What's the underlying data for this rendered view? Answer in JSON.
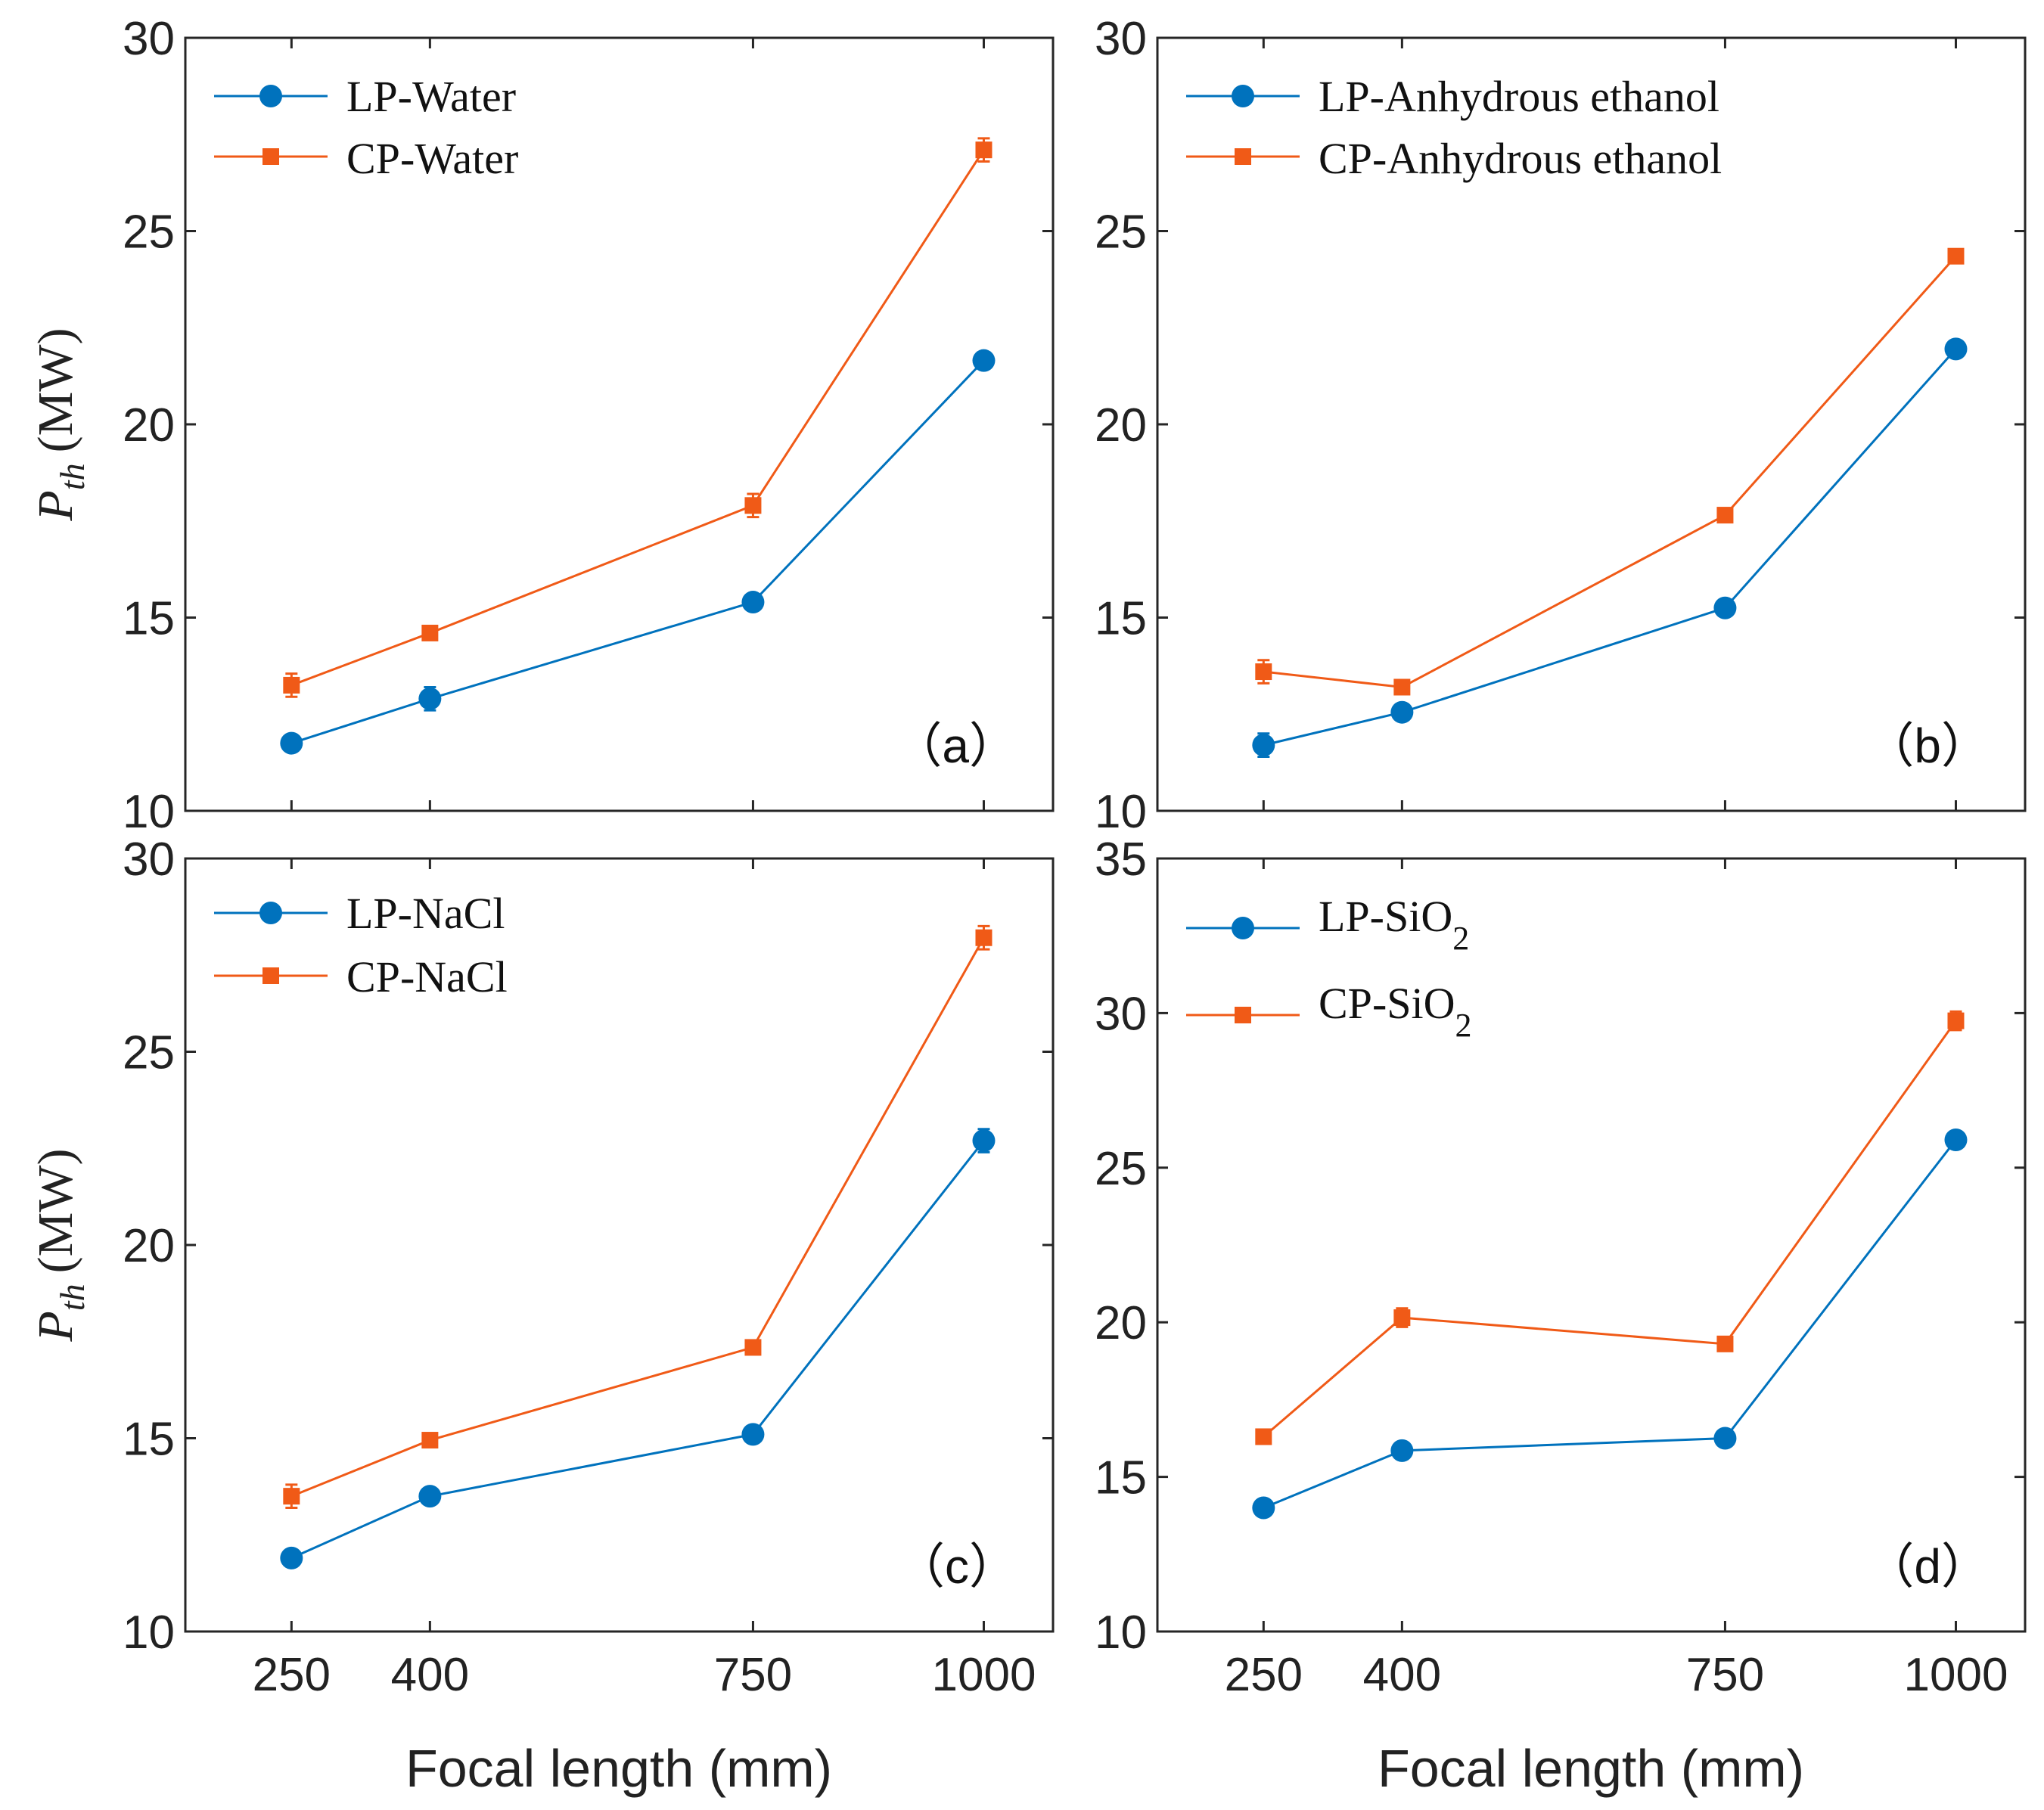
{
  "colors": {
    "LP": "#0072BD",
    "CP": "#F05A17",
    "axis": "#262626"
  },
  "chart_data": [
    {
      "type": "line",
      "panel": "(a)",
      "x": [
        250,
        400,
        750,
        1000
      ],
      "xlabel": "",
      "ylabel": "P_th (MW)",
      "ylim": [
        10,
        30
      ],
      "yticks": [
        10,
        15,
        20,
        25,
        30
      ],
      "series": [
        {
          "name": "LP-Water",
          "marker": "circle",
          "values": [
            11.75,
            12.9,
            15.4,
            21.65
          ],
          "errors": [
            0.15,
            0.3,
            0.2,
            0.2
          ]
        },
        {
          "name": "CP-Water",
          "marker": "square",
          "values": [
            13.25,
            14.6,
            17.9,
            27.1
          ],
          "errors": [
            0.3,
            0.15,
            0.3,
            0.3
          ]
        }
      ]
    },
    {
      "type": "line",
      "panel": "(b)",
      "x": [
        250,
        400,
        750,
        1000
      ],
      "xlabel": "",
      "ylabel": "",
      "ylim": [
        10,
        30
      ],
      "yticks": [
        10,
        15,
        20,
        25,
        30
      ],
      "series": [
        {
          "name": "LP-Anhydrous ethanol",
          "marker": "circle",
          "values": [
            11.7,
            12.55,
            15.25,
            21.95
          ],
          "errors": [
            0.3,
            0.15,
            0.2,
            0.15
          ]
        },
        {
          "name": "CP-Anhydrous ethanol",
          "marker": "square",
          "values": [
            13.6,
            13.2,
            17.65,
            24.35
          ],
          "errors": [
            0.3,
            0.15,
            0.15,
            0.15
          ]
        }
      ]
    },
    {
      "type": "line",
      "panel": "(c)",
      "x": [
        250,
        400,
        750,
        1000
      ],
      "xlabel": "Focal length (mm)",
      "ylabel": "P_th (MW)",
      "ylim": [
        10,
        30
      ],
      "yticks": [
        10,
        15,
        20,
        25,
        30
      ],
      "series": [
        {
          "name": "LP-NaCl",
          "marker": "circle",
          "values": [
            11.9,
            13.5,
            15.1,
            22.7
          ],
          "errors": [
            0.15,
            0.15,
            0.15,
            0.3
          ]
        },
        {
          "name": "CP-NaCl",
          "marker": "square",
          "values": [
            13.5,
            14.95,
            17.35,
            27.95
          ],
          "errors": [
            0.3,
            0.15,
            0.15,
            0.3
          ]
        }
      ]
    },
    {
      "type": "line",
      "panel": "(d)",
      "x": [
        250,
        400,
        750,
        1000
      ],
      "xlabel": "Focal length (mm)",
      "ylabel": "",
      "ylim": [
        10,
        35
      ],
      "yticks": [
        10,
        15,
        20,
        25,
        30,
        35
      ],
      "series": [
        {
          "name": "LP-SiO2",
          "marker": "circle",
          "values": [
            14.0,
            15.85,
            16.25,
            25.9
          ],
          "errors": [
            0.15,
            0.15,
            0.15,
            0.2
          ]
        },
        {
          "name": "CP-SiO2",
          "marker": "square",
          "values": [
            16.3,
            20.15,
            19.3,
            29.75
          ],
          "errors": [
            0.15,
            0.3,
            0.15,
            0.3
          ]
        }
      ]
    }
  ],
  "axis_text": {
    "xlabel": "Focal length (mm)",
    "ylabel_main": "P",
    "ylabel_sub": "th",
    "ylabel_unit": "(MW)",
    "legend_lp_sio2_main": "LP-SiO",
    "legend_cp_sio2_main": "CP-SiO",
    "legend_sio2_sub": "2",
    "panel_a": "（a）",
    "panel_b": "（b）",
    "panel_c": "（c）",
    "panel_d": "（d）"
  }
}
